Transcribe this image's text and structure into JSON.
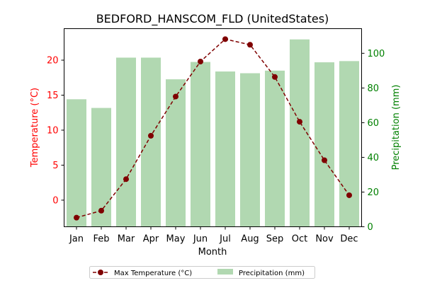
{
  "chart_data": {
    "type": "bar",
    "title": "BEDFORD_HANSCOM_FLD (UnitedStates)",
    "xlabel": "Month",
    "ylabel_left": "Temperature (°C)",
    "ylabel_right": "Precipitation (mm)",
    "categories": [
      "Jan",
      "Feb",
      "Mar",
      "Apr",
      "May",
      "Jun",
      "Jul",
      "Aug",
      "Sep",
      "Oct",
      "Nov",
      "Dec"
    ],
    "y_left_lim": [
      -3.8,
      24.5
    ],
    "y_left_ticks": [
      0,
      5,
      10,
      15,
      20
    ],
    "y_right_lim": [
      0,
      114.2
    ],
    "y_right_ticks": [
      0,
      20,
      40,
      60,
      80,
      100
    ],
    "grid": false,
    "legend_position": "bottom-center",
    "series": [
      {
        "name": "Max Temperature (°C)",
        "kind": "line",
        "axis": "left",
        "style": "dashed",
        "color": "#7f0000",
        "values": [
          -2.5,
          -1.5,
          3.0,
          9.2,
          14.8,
          19.8,
          23.0,
          22.2,
          17.6,
          11.2,
          5.7,
          0.7
        ]
      },
      {
        "name": "Precipitation (mm)",
        "kind": "bar",
        "axis": "right",
        "color": "#b1d8b1",
        "values": [
          73.5,
          68.5,
          97.5,
          97.5,
          85.0,
          95.0,
          89.5,
          88.5,
          90.0,
          108.0,
          94.8,
          95.5
        ]
      }
    ],
    "colors": {
      "left_axis": "#ff0000",
      "right_axis": "#008000",
      "text": "#000000"
    }
  }
}
